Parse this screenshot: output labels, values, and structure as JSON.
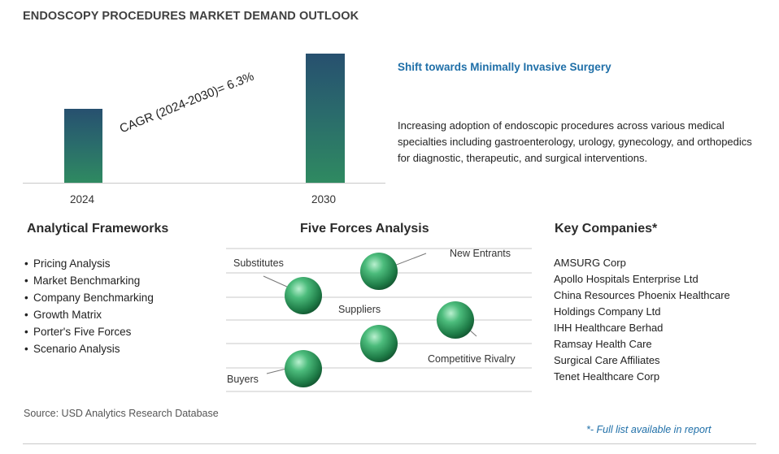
{
  "title": "ENDOSCOPY PROCEDURES MARKET DEMAND OUTLOOK",
  "chart_data": {
    "type": "bar",
    "categories": [
      "2024",
      "2030"
    ],
    "annotation": "CAGR (2024-2030)=  6.3%",
    "cagr_percent": 6.3
  },
  "highlight": {
    "title": "Shift towards Minimally Invasive Surgery",
    "description": "Increasing adoption of endoscopic procedures across various medical specialties including gastroenterology, urology, gynecology, and orthopedics for diagnostic, therapeutic, and surgical interventions."
  },
  "frameworks": {
    "heading": "Analytical Frameworks",
    "items": [
      "Pricing Analysis",
      "Market Benchmarking",
      "Company Benchmarking",
      "Growth Matrix",
      "Porter's Five Forces",
      "Scenario Analysis"
    ]
  },
  "five_forces": {
    "heading": "Five Forces Analysis",
    "labels": {
      "substitutes": "Substitutes",
      "new_entrants": "New Entrants",
      "suppliers": "Suppliers",
      "competitive_rivalry": "Competitive Rivalry",
      "buyers": "Buyers"
    }
  },
  "companies": {
    "heading": "Key Companies*",
    "items": [
      "AMSURG Corp",
      "Apollo Hospitals Enterprise Ltd",
      "China Resources Phoenix Healthcare",
      "Holdings Company Ltd",
      "IHH Healthcare Berhad",
      "Ramsay Health Care",
      "Surgical Care Affiliates",
      "Tenet Healthcare Corp"
    ]
  },
  "source": "Source: USD Analytics Research Database",
  "footnote": "*- Full list available in report",
  "colors": {
    "bar_top": "#27506f",
    "bar_bottom": "#2f8a61",
    "accent_blue": "#1f6fa8",
    "sphere": "#2f9a5f"
  }
}
